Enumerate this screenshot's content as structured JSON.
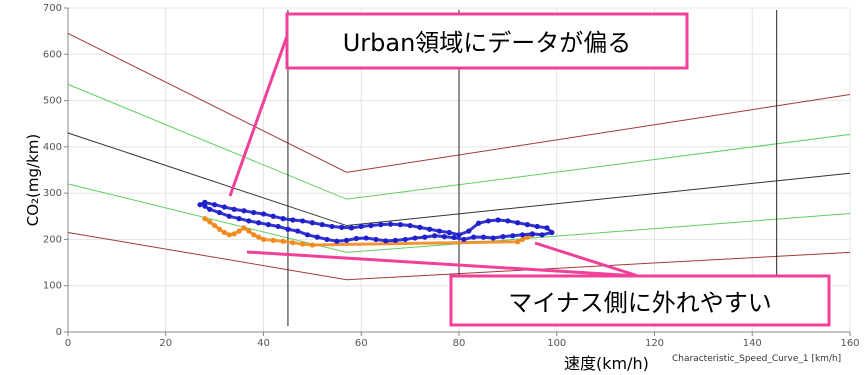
{
  "chart_data": {
    "type": "scatter",
    "title": "",
    "xlabel": "速度(km/h)",
    "xlabel_secondary": "Characteristic_Speed_Curve_1 [km/h]",
    "ylabel": "CO₂(mg/km)",
    "xlim": [
      0,
      160
    ],
    "ylim": [
      0,
      700
    ],
    "xticks": [
      0,
      20,
      40,
      60,
      80,
      100,
      120,
      140,
      160
    ],
    "yticks": [
      0,
      100,
      200,
      300,
      400,
      500,
      600,
      700
    ],
    "grid": true,
    "vertical_markers": [
      45,
      80,
      145
    ],
    "curves": [
      {
        "color": "#a33a3a",
        "points": [
          [
            0,
            645
          ],
          [
            57,
            345
          ],
          [
            160,
            513
          ]
        ]
      },
      {
        "color": "#5fcf5f",
        "points": [
          [
            0,
            535
          ],
          [
            57,
            287
          ],
          [
            160,
            427
          ]
        ]
      },
      {
        "color": "#333333",
        "points": [
          [
            0,
            430
          ],
          [
            57,
            230
          ],
          [
            160,
            343
          ]
        ]
      },
      {
        "color": "#5fcf5f",
        "points": [
          [
            0,
            320
          ],
          [
            57,
            172
          ],
          [
            160,
            256
          ]
        ]
      },
      {
        "color": "#a33a3a",
        "points": [
          [
            0,
            215
          ],
          [
            57,
            113
          ],
          [
            160,
            172
          ]
        ]
      }
    ],
    "series": [
      {
        "color": "#1f1fcc",
        "x": [
          27,
          28,
          30,
          32,
          34,
          36,
          38,
          40,
          42,
          44,
          46,
          48,
          50,
          52,
          54,
          56,
          58,
          60,
          62,
          64,
          66,
          68,
          70,
          72,
          74,
          76,
          78,
          80,
          82,
          84,
          86,
          88,
          90,
          92,
          94,
          96,
          98,
          99,
          97,
          95,
          93,
          91,
          89,
          87,
          85,
          83,
          81,
          79,
          77,
          75,
          73,
          71,
          69,
          67,
          65,
          63,
          61,
          59,
          57,
          55,
          53,
          51,
          49,
          47,
          45,
          43,
          41,
          39,
          37,
          35,
          33,
          31,
          29,
          28
        ],
        "y": [
          275,
          280,
          275,
          270,
          265,
          262,
          258,
          255,
          250,
          245,
          242,
          240,
          236,
          232,
          228,
          226,
          225,
          228,
          230,
          232,
          233,
          232,
          230,
          226,
          222,
          218,
          215,
          210,
          218,
          235,
          240,
          242,
          240,
          236,
          232,
          228,
          225,
          215,
          210,
          212,
          210,
          208,
          206,
          203,
          205,
          205,
          200,
          204,
          206,
          208,
          205,
          203,
          200,
          198,
          197,
          200,
          203,
          202,
          198,
          196,
          200,
          205,
          210,
          218,
          222,
          228,
          232,
          236,
          240,
          245,
          250,
          258,
          265,
          272
        ]
      },
      {
        "color": "#f28a1e",
        "x": [
          28,
          29,
          30,
          31,
          32,
          33,
          34,
          35,
          36,
          37,
          38,
          39,
          40,
          42,
          44,
          46,
          48,
          50,
          92,
          93,
          94,
          95
        ],
        "y": [
          245,
          238,
          230,
          222,
          215,
          210,
          212,
          218,
          225,
          218,
          210,
          205,
          200,
          198,
          196,
          193,
          190,
          188,
          195,
          200,
          205,
          210
        ]
      }
    ],
    "annotations": [
      {
        "text": "Urban領域にデータが偏る"
      },
      {
        "text": "マイナス側に外れやすい"
      }
    ]
  }
}
